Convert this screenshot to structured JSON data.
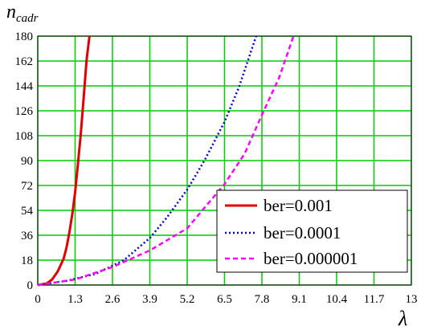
{
  "chart_data": {
    "type": "line",
    "ylabel": "n",
    "ylabel_sub": "cadr",
    "xlabel": "λ",
    "xlim": [
      0,
      13
    ],
    "ylim": [
      0,
      180
    ],
    "x_ticks": [
      "0",
      "1.3",
      "2.6",
      "3.9",
      "5.2",
      "6.5",
      "7.8",
      "9.1",
      "10.4",
      "11.7",
      "13"
    ],
    "y_ticks": [
      "0",
      "18",
      "36",
      "54",
      "72",
      "90",
      "108",
      "126",
      "144",
      "162",
      "180"
    ],
    "grid": true,
    "grid_color": "#00cc00",
    "legend_position": "bottom-right",
    "series": [
      {
        "name": "ber=0.001",
        "color": "#e00000",
        "dash": "solid",
        "points": [
          [
            0,
            0
          ],
          [
            0.3,
            1
          ],
          [
            0.5,
            4
          ],
          [
            0.7,
            10
          ],
          [
            0.9,
            19
          ],
          [
            1.0,
            27
          ],
          [
            1.1,
            38
          ],
          [
            1.2,
            51
          ],
          [
            1.3,
            67
          ],
          [
            1.4,
            88
          ],
          [
            1.5,
            110
          ],
          [
            1.6,
            136
          ],
          [
            1.7,
            163
          ],
          [
            1.8,
            180
          ]
        ]
      },
      {
        "name": "ber=0.0001",
        "color": "#0000cc",
        "dash": "dot",
        "points": [
          [
            0,
            0
          ],
          [
            1,
            3
          ],
          [
            2,
            8
          ],
          [
            3,
            18
          ],
          [
            3.9,
            34
          ],
          [
            4.5,
            49
          ],
          [
            5.2,
            69
          ],
          [
            5.8,
            90
          ],
          [
            6.5,
            118
          ],
          [
            7.0,
            143
          ],
          [
            7.6,
            180
          ]
        ]
      },
      {
        "name": "ber=0.000001",
        "color": "#ff00ff",
        "dash": "dash",
        "points": [
          [
            0,
            0
          ],
          [
            1.3,
            4
          ],
          [
            2.6,
            13
          ],
          [
            3.9,
            25
          ],
          [
            5.2,
            41
          ],
          [
            6.5,
            73
          ],
          [
            7.2,
            95
          ],
          [
            7.8,
            123
          ],
          [
            8.4,
            150
          ],
          [
            8.9,
            180
          ]
        ]
      }
    ]
  }
}
